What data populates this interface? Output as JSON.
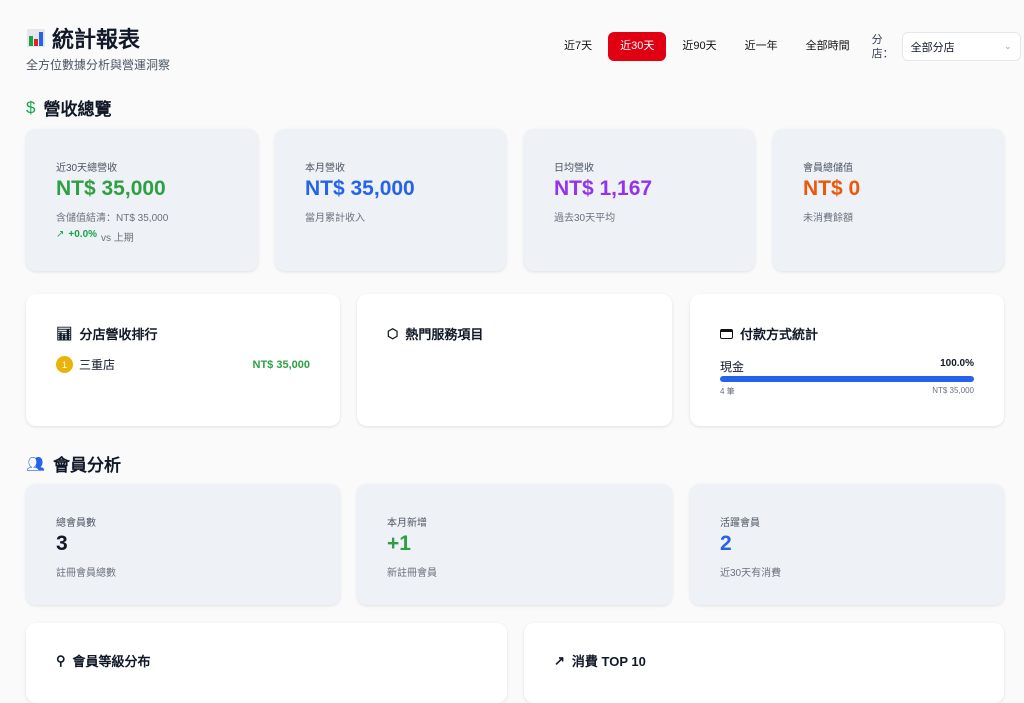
{
  "header": {
    "icon": "bar-chart-emoji",
    "title": "統計報表",
    "subtitle": "全方位數據分析與營運洞察"
  },
  "filters": {
    "tabs": [
      "近7天",
      "近30天",
      "近90天",
      "近一年",
      "全部時間"
    ],
    "active": "近30天",
    "branch_label": "分店：",
    "branch_value": "全部分店"
  },
  "revenue": {
    "title": "營收總覽",
    "cards": [
      {
        "label": "近30天總營收",
        "value": "NT$ 35,000",
        "note": "含儲值結清：NT$ 35,000",
        "trend": "+0.0%",
        "trend_suffix": "vs 上期",
        "color": "#2ea043"
      },
      {
        "label": "本月營收",
        "value": "NT$ 35,000",
        "note": "當月累計收入",
        "color": "#2563eb"
      },
      {
        "label": "日均營收",
        "value": "NT$ 1,167",
        "note": "過去30天平均",
        "color": "#9333ea"
      },
      {
        "label": "會員總儲值",
        "value": "NT$ 0",
        "note": "未消費餘額",
        "color": "#ea580c"
      }
    ]
  },
  "ranking": {
    "title": "分店營收排行",
    "items": [
      {
        "rank": "1",
        "name": "三重店",
        "value": "NT$ 35,000"
      }
    ]
  },
  "services": {
    "title": "熱門服務項目"
  },
  "payment": {
    "title": "付款方式統計",
    "items": [
      {
        "method": "現金",
        "percent": "100.0%",
        "fill": 100,
        "count": "4 筆",
        "amount": "NT$ 35,000"
      }
    ]
  },
  "members": {
    "title": "會員分析",
    "cards": [
      {
        "label": "總會員數",
        "value": "3",
        "note": "註冊會員總數",
        "color": "#111827"
      },
      {
        "label": "本月新增",
        "value": "+1",
        "note": "新註冊會員",
        "color": "#2ea043"
      },
      {
        "label": "活躍會員",
        "value": "2",
        "note": "近30天有消費",
        "color": "#2563eb"
      }
    ]
  },
  "level": {
    "title": "會員等級分布"
  },
  "top10": {
    "title": "消費 TOP 10"
  }
}
